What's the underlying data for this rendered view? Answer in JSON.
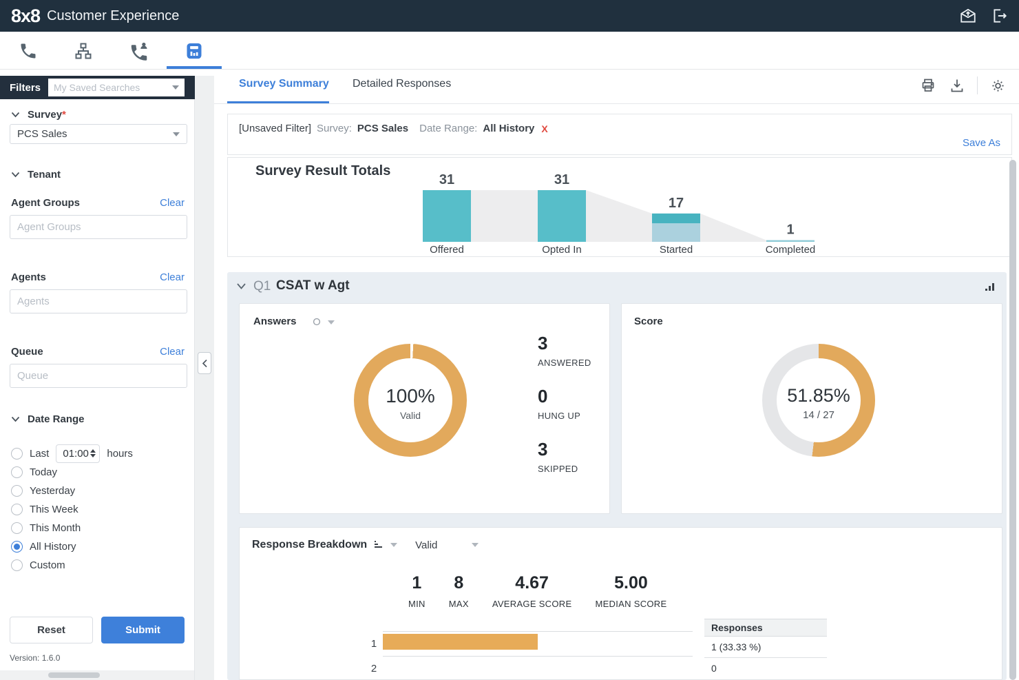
{
  "header": {
    "brand": "8x8",
    "title": "Customer Experience"
  },
  "sidebar": {
    "filters_label": "Filters",
    "saved_searches_placeholder": "My Saved Searches",
    "survey": {
      "label": "Survey",
      "required_mark": "*",
      "value": "PCS Sales"
    },
    "tenant_label": "Tenant",
    "fields": [
      {
        "label": "Agent Groups",
        "clear": "Clear",
        "placeholder": "Agent Groups"
      },
      {
        "label": "Agents",
        "clear": "Clear",
        "placeholder": "Agents"
      },
      {
        "label": "Queue",
        "clear": "Clear",
        "placeholder": "Queue"
      }
    ],
    "date_range": {
      "label": "Date Range",
      "options": [
        {
          "label": "Last",
          "input_value": "01:00",
          "suffix": "hours",
          "selected": false
        },
        {
          "label": "Today",
          "selected": false
        },
        {
          "label": "Yesterday",
          "selected": false
        },
        {
          "label": "This Week",
          "selected": false
        },
        {
          "label": "This Month",
          "selected": false
        },
        {
          "label": "All History",
          "selected": true
        },
        {
          "label": "Custom",
          "selected": false
        }
      ]
    },
    "reset_label": "Reset",
    "submit_label": "Submit",
    "version": "Version: 1.6.0"
  },
  "main": {
    "tabs": [
      {
        "label": "Survey Summary",
        "active": true
      },
      {
        "label": "Detailed Responses",
        "active": false
      }
    ],
    "filter_bar": {
      "unsaved_label": "[Unsaved Filter]",
      "survey_label": "Survey:",
      "survey_value": "PCS Sales",
      "date_range_label": "Date Range:",
      "date_range_value": "All History",
      "remove_label": "X",
      "save_as_label": "Save As"
    },
    "section": {
      "qnum": "Q1",
      "title": "CSAT w Agt"
    }
  },
  "chart_data": [
    {
      "type": "bar",
      "variant": "funnel",
      "title": "Survey Result Totals",
      "categories": [
        "Offered",
        "Opted In",
        "Started",
        "Completed"
      ],
      "values": [
        31,
        31,
        17,
        1
      ],
      "bar_color": "#57bec9",
      "started_top_color": "#47b3c0",
      "started_bottom_color": "#abd1de",
      "completed_color": "#8fcbd7",
      "connector_color": "#ededee"
    },
    {
      "type": "pie",
      "variant": "donut",
      "title": "Answers",
      "percent": 100,
      "color": "#e2a95c",
      "center_value": "100%",
      "center_label": "Valid",
      "slices": [
        {
          "label": "Valid",
          "value": 100
        }
      ],
      "stats": [
        {
          "value": "3",
          "label": "ANSWERED"
        },
        {
          "value": "0",
          "label": "HUNG UP"
        },
        {
          "value": "3",
          "label": "SKIPPED"
        }
      ]
    },
    {
      "type": "pie",
      "variant": "donut",
      "title": "Score",
      "percent": 51.85,
      "color": "#e2a95c",
      "track_color": "#e5e6e8",
      "center_value": "51.85%",
      "center_label": "14 / 27"
    },
    {
      "type": "bar",
      "variant": "horizontal",
      "title": "Response Breakdown",
      "filter_value": "Valid",
      "stats": [
        {
          "value": "1",
          "label": "MIN"
        },
        {
          "value": "8",
          "label": "MAX"
        },
        {
          "value": "4.67",
          "label": "AVERAGE SCORE"
        },
        {
          "value": "5.00",
          "label": "MEDIAN SCORE"
        }
      ],
      "categories": [
        "1",
        "2"
      ],
      "values": [
        1,
        0
      ],
      "x_max": 2,
      "bar_color": "#e7ab58",
      "table": {
        "header": "Responses",
        "rows": [
          "1 (33.33 %)",
          "0"
        ]
      }
    }
  ],
  "colors": {
    "accent": "#3d7fd9",
    "teal": "#57bec9",
    "gold": "#e2a95c",
    "header_bg": "#20303e"
  }
}
